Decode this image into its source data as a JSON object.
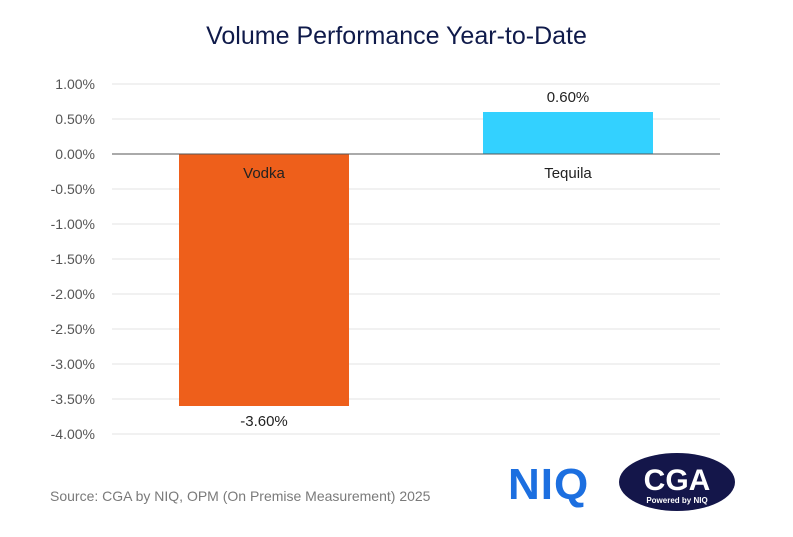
{
  "chart_data": {
    "type": "bar",
    "title": "Volume Performance Year-to-Date",
    "categories": [
      "Vodka",
      "Tequila"
    ],
    "values": [
      -3.6,
      0.6
    ],
    "value_labels": [
      "-3.60%",
      "0.60%"
    ],
    "colors": [
      "#ee5f1b",
      "#33d1ff"
    ],
    "ylim": [
      -4.0,
      1.0
    ],
    "yticks": [
      "1.00%",
      "0.50%",
      "0.00%",
      "-0.50%",
      "-1.00%",
      "-1.50%",
      "-2.00%",
      "-2.50%",
      "-3.00%",
      "-3.50%",
      "-4.00%"
    ],
    "grid": true,
    "xlabel": "",
    "ylabel": ""
  },
  "footer": {
    "source": "Source: CGA by NIQ, OPM (On Premise Measurement) 2025"
  },
  "logos": {
    "niq": "NIQ",
    "cga": "CGA",
    "cga_tagline": "Powered by NIQ"
  }
}
